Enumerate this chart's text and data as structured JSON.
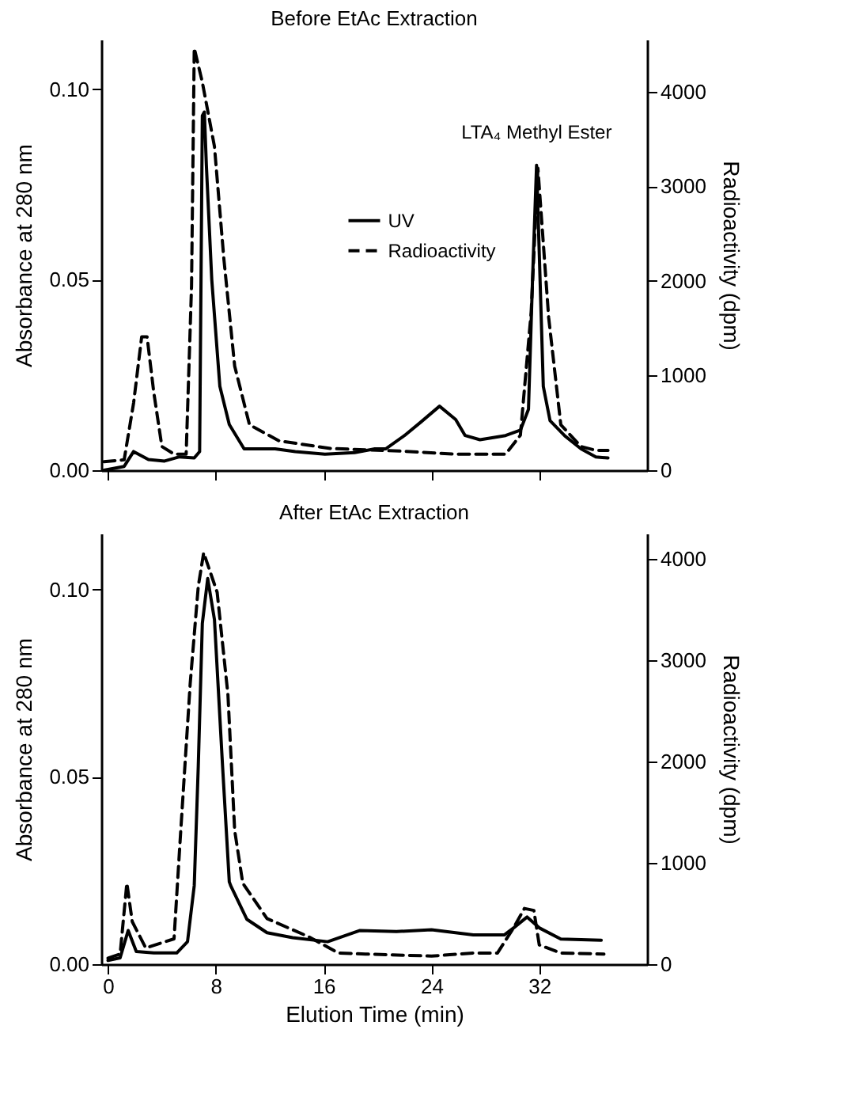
{
  "chart_data": [
    {
      "type": "line",
      "title": "Before EtAc Extraction",
      "ylabel": "Absorbance at 280 nm",
      "y2label": "Radioactivity (dpm)",
      "xlim": [
        -0.5,
        40
      ],
      "xticks": [
        0,
        8,
        16,
        24,
        32
      ],
      "tick_labels": "y",
      "ylim": [
        0,
        0.113
      ],
      "yticks": [
        {
          "value": 0,
          "label": "0.00"
        },
        {
          "value": 0.05,
          "label": "0.05"
        },
        {
          "value": 0.1,
          "label": "0.10"
        }
      ],
      "y2lim": [
        0,
        4550
      ],
      "y2ticks": [
        0,
        1000,
        2000,
        3000,
        4000
      ],
      "legend": "center",
      "grid": false,
      "annotations": [
        {
          "text": "LTA₄ Methyl Ester",
          "x": 31.8,
          "y": 0.08
        }
      ],
      "series": [
        {
          "name": "UV",
          "color": "#000000",
          "line_style": "solid",
          "x": [
            -0.3,
            1.2,
            1.9,
            3.0,
            4.2,
            5.3,
            6.4,
            6.8,
            7.0,
            7.15,
            7.3,
            7.7,
            8.3,
            9.0,
            10.1,
            12.4,
            13.9,
            16.1,
            18.3,
            19.8,
            20.6,
            22.0,
            23.2,
            24.6,
            25.8,
            26.5,
            27.6,
            29.5,
            30.6,
            31.2,
            31.5,
            31.8,
            32.0,
            32.3,
            32.8,
            33.9,
            35.1,
            36.2,
            37.1
          ],
          "values": [
            0.0,
            0.001,
            0.0049,
            0.0028,
            0.0024,
            0.0035,
            0.0032,
            0.0049,
            0.093,
            0.094,
            0.08,
            0.05,
            0.022,
            0.012,
            0.0056,
            0.0056,
            0.0049,
            0.0042,
            0.0046,
            0.0056,
            0.0056,
            0.0091,
            0.0126,
            0.0168,
            0.0133,
            0.0091,
            0.008,
            0.0091,
            0.0105,
            0.016,
            0.05,
            0.08,
            0.057,
            0.022,
            0.013,
            0.009,
            0.0056,
            0.0035,
            0.0032
          ]
        },
        {
          "name": "Radioactivity",
          "color": "#000000",
          "line_style": "dashed",
          "axis": "y2",
          "x": [
            -0.3,
            1.2,
            1.9,
            2.5,
            2.9,
            3.4,
            4.0,
            4.9,
            5.8,
            6.2,
            6.4,
            7.0,
            7.9,
            8.6,
            9.4,
            10.5,
            12.7,
            16.5,
            22.0,
            25.8,
            29.5,
            30.6,
            31.4,
            31.9,
            32.7,
            33.6,
            35.1,
            36.2,
            37.1
          ],
          "values": [
            90,
            110,
            710,
            1410,
            1410,
            820,
            250,
            170,
            170,
            1950,
            4460,
            4100,
            3420,
            2230,
            1100,
            480,
            310,
            230,
            200,
            170,
            170,
            370,
            1670,
            3190,
            1610,
            480,
            250,
            210,
            210
          ]
        }
      ]
    },
    {
      "type": "line",
      "title": "After EtAc Extraction",
      "xlabel": "Elution Time (min)",
      "ylabel": "Absorbance at 280 nm",
      "y2label": "Radioactivity (dpm)",
      "xlim": [
        -0.5,
        40
      ],
      "xticks": [
        0,
        8,
        16,
        24,
        32
      ],
      "ylim": [
        0,
        0.115
      ],
      "yticks": [
        {
          "value": 0,
          "label": "0.00"
        },
        {
          "value": 0.05,
          "label": "0.05"
        },
        {
          "value": 0.1,
          "label": "0.10"
        }
      ],
      "y2lim": [
        0,
        4250
      ],
      "y2ticks": [
        0,
        1000,
        2000,
        3000,
        4000
      ],
      "legend": "center",
      "grid": false,
      "series": [
        {
          "name": "UV",
          "color": "#000000",
          "line_style": "solid",
          "x": [
            0,
            0.9,
            1.5,
            2.1,
            3.4,
            5.1,
            5.9,
            6.4,
            6.7,
            7.0,
            7.4,
            7.9,
            8.5,
            9.0,
            9.1,
            10.3,
            11.8,
            13.7,
            16.3,
            18.7,
            21.4,
            24.0,
            27.1,
            29.4,
            30.1,
            31.1,
            32.0,
            33.6,
            36.6
          ],
          "values": [
            0.001,
            0.0017,
            0.009,
            0.0034,
            0.003,
            0.003,
            0.006,
            0.021,
            0.053,
            0.091,
            0.103,
            0.092,
            0.053,
            0.022,
            0.021,
            0.012,
            0.0084,
            0.0071,
            0.006,
            0.009,
            0.0087,
            0.0092,
            0.0078,
            0.0078,
            0.0097,
            0.0126,
            0.0097,
            0.0067,
            0.0064
          ]
        },
        {
          "name": "Radioactivity",
          "color": "#000000",
          "line_style": "dashed",
          "axis": "y2",
          "x": [
            0,
            0.9,
            1.4,
            1.8,
            2.8,
            4.9,
            5.4,
            6.1,
            6.7,
            7.1,
            8.1,
            8.9,
            9.4,
            10.0,
            11.8,
            14.9,
            17.1,
            19.1,
            24.0,
            27.1,
            28.9,
            30.1,
            30.9,
            31.6,
            32.0,
            33.6,
            36.8
          ],
          "values": [
            60,
            100,
            800,
            420,
            160,
            250,
            1320,
            2770,
            3730,
            4060,
            3670,
            2660,
            1320,
            800,
            450,
            270,
            110,
            100,
            80,
            110,
            110,
            360,
            550,
            530,
            190,
            110,
            100
          ]
        }
      ]
    }
  ]
}
